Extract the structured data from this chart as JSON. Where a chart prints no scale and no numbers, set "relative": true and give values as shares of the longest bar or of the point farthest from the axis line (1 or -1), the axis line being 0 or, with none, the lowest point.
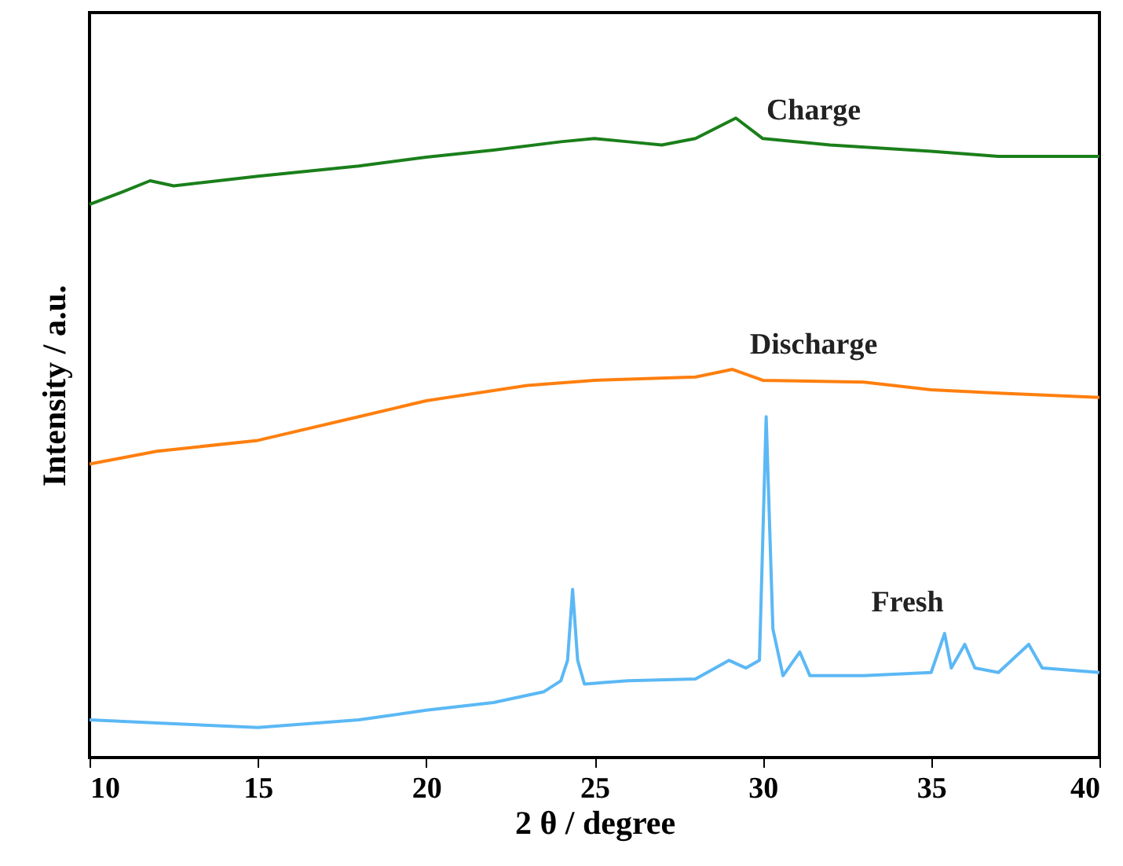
{
  "chart_data": {
    "type": "line",
    "relative": true,
    "xlabel": "2 θ / degree",
    "ylabel": "Intensity / a.u.",
    "xlim": [
      10,
      40
    ],
    "xticks": [
      10,
      15,
      20,
      25,
      30,
      35,
      40
    ],
    "tick_labels": "x",
    "grid": false,
    "marker": "none",
    "line_style": "solid",
    "series": [
      {
        "color": "#1a7f1a",
        "x": [
          10,
          11,
          11.8,
          12.5,
          15,
          18,
          20,
          22,
          24,
          25,
          26,
          27,
          28,
          29.2,
          30,
          32,
          35,
          37,
          40
        ],
        "values": [
          0.865,
          0.885,
          0.902,
          0.894,
          0.909,
          0.925,
          0.939,
          0.95,
          0.963,
          0.968,
          0.963,
          0.958,
          0.968,
          1.0,
          0.968,
          0.958,
          0.948,
          0.94,
          0.94
        ]
      },
      {
        "color": "#ff7f0e",
        "x": [
          10,
          12,
          15,
          18,
          20,
          23,
          25,
          28,
          29.1,
          30,
          33,
          35,
          37,
          40
        ],
        "values": [
          0.459,
          0.479,
          0.496,
          0.533,
          0.558,
          0.582,
          0.59,
          0.595,
          0.607,
          0.59,
          0.587,
          0.575,
          0.57,
          0.563
        ]
      },
      {
        "color": "#5bb8f5",
        "x": [
          10,
          12,
          15,
          18,
          20,
          22,
          23.5,
          24,
          24.2,
          24.35,
          24.5,
          24.7,
          26,
          28,
          29,
          29.5,
          29.9,
          30.1,
          30.3,
          30.6,
          31.1,
          31.4,
          33,
          35,
          35.4,
          35.6,
          36,
          36.3,
          37,
          37.9,
          38.3,
          40
        ],
        "values": [
          0.059,
          0.054,
          0.047,
          0.059,
          0.074,
          0.086,
          0.103,
          0.12,
          0.152,
          0.263,
          0.152,
          0.115,
          0.12,
          0.123,
          0.152,
          0.14,
          0.152,
          0.533,
          0.201,
          0.128,
          0.165,
          0.128,
          0.128,
          0.133,
          0.194,
          0.14,
          0.177,
          0.14,
          0.133,
          0.177,
          0.14,
          0.133
        ]
      }
    ],
    "annotations": [
      "Charge",
      "Discharge",
      "Fresh"
    ]
  }
}
